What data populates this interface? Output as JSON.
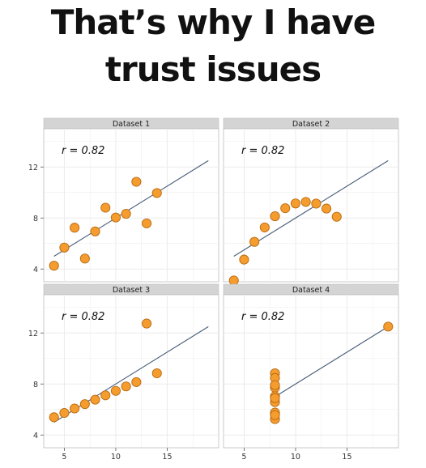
{
  "meme": {
    "title_line1": "That’s why I have",
    "title_line2": "trust issues"
  },
  "chart_data": {
    "type": "scatter",
    "xlim": [
      3,
      20
    ],
    "ylim": [
      3,
      15
    ],
    "x_ticks": [
      5,
      10,
      15
    ],
    "y_ticks": [
      4,
      8,
      12
    ],
    "grid": true,
    "colors": {
      "point_fill": "#f59c2f",
      "point_stroke": "#b86a10",
      "line": "#4a5f7a",
      "strip": "#d4d4d4",
      "panel_bg": "#ffffff",
      "grid": "#ebebeb"
    },
    "fit_line": {
      "intercept": 3.0,
      "slope": 0.5
    },
    "panels": [
      {
        "name": "Dataset 1",
        "annotation": "r = 0.82",
        "x": [
          10,
          8,
          13,
          9,
          11,
          14,
          6,
          4,
          12,
          7,
          5
        ],
        "y": [
          8.04,
          6.95,
          7.58,
          8.81,
          8.33,
          9.96,
          7.24,
          4.26,
          10.84,
          4.82,
          5.68
        ]
      },
      {
        "name": "Dataset 2",
        "annotation": "r = 0.82",
        "x": [
          10,
          8,
          13,
          9,
          11,
          14,
          6,
          4,
          12,
          7,
          5
        ],
        "y": [
          9.14,
          8.14,
          8.74,
          8.77,
          9.26,
          8.1,
          6.13,
          3.1,
          9.13,
          7.26,
          4.74
        ]
      },
      {
        "name": "Dataset 3",
        "annotation": "r = 0.82",
        "x": [
          10,
          8,
          13,
          9,
          11,
          14,
          6,
          4,
          12,
          7,
          5
        ],
        "y": [
          7.46,
          6.77,
          12.74,
          7.11,
          7.81,
          8.84,
          6.08,
          5.39,
          8.15,
          6.42,
          5.73
        ]
      },
      {
        "name": "Dataset 4",
        "annotation": "r = 0.82",
        "x": [
          8,
          8,
          8,
          8,
          8,
          8,
          8,
          19,
          8,
          8,
          8
        ],
        "y": [
          6.58,
          5.76,
          7.71,
          8.84,
          8.47,
          7.04,
          5.25,
          12.5,
          5.56,
          7.91,
          6.89
        ]
      }
    ]
  }
}
